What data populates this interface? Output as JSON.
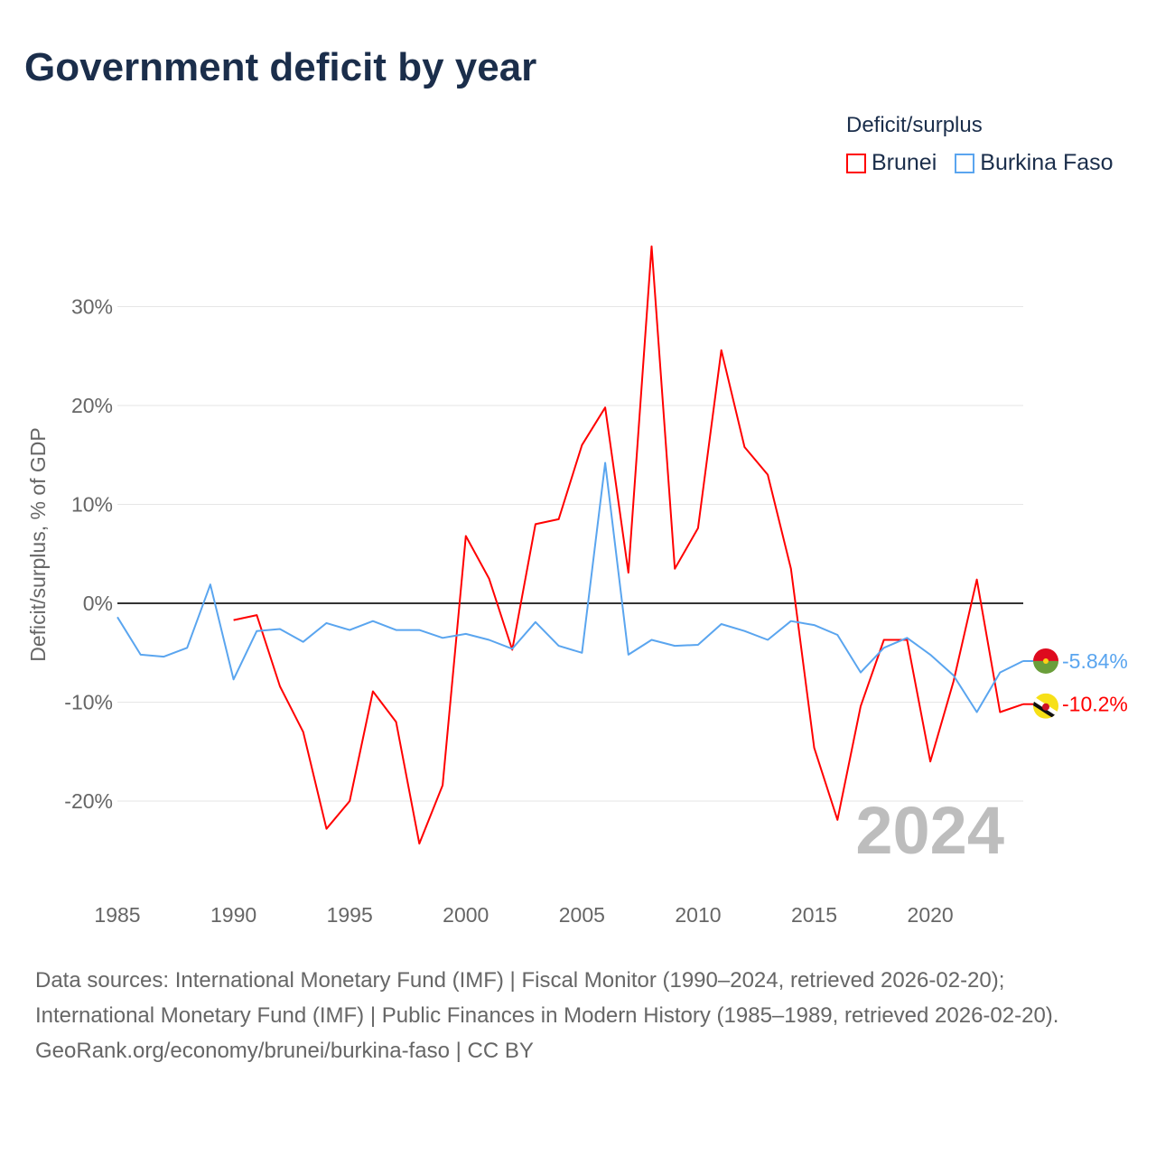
{
  "title": "Government deficit by year",
  "legend": {
    "title": "Deficit/surplus",
    "items": [
      {
        "name": "Brunei",
        "color": "#ff0000"
      },
      {
        "name": "Burkina Faso",
        "color": "#5aa5ef"
      }
    ]
  },
  "chart_data": {
    "type": "line",
    "title": "Government deficit by year",
    "ylabel": "Deficit/surplus, % of GDP",
    "xlabel": "",
    "xlim": [
      1985,
      2024
    ],
    "ylim": [
      -27,
      36
    ],
    "x_ticks": [
      1985,
      1990,
      1995,
      2000,
      2005,
      2010,
      2015,
      2020
    ],
    "y_ticks": [
      30,
      20,
      10,
      0,
      -10,
      -20
    ],
    "y_tick_labels": [
      "30%",
      "20%",
      "10%",
      "0%",
      "-10%",
      "-20%"
    ],
    "grid": true,
    "year_watermark": "2024",
    "series": [
      {
        "name": "Brunei",
        "color": "#ff0000",
        "end_label": "-10.2%",
        "x": [
          1990,
          1991,
          1992,
          1993,
          1994,
          1995,
          1996,
          1997,
          1998,
          1999,
          2000,
          2001,
          2002,
          2003,
          2004,
          2005,
          2006,
          2007,
          2008,
          2009,
          2010,
          2011,
          2012,
          2013,
          2014,
          2015,
          2016,
          2017,
          2018,
          2019,
          2020,
          2021,
          2022,
          2023,
          2024
        ],
        "values": [
          -1.7,
          -1.2,
          -8.4,
          -13.0,
          -22.8,
          -20.0,
          -8.9,
          -12.0,
          -24.3,
          -18.4,
          6.8,
          2.5,
          -4.7,
          8.0,
          8.5,
          16.0,
          19.8,
          3.1,
          36.1,
          3.5,
          7.6,
          25.6,
          15.8,
          13.0,
          3.5,
          -14.6,
          -21.9,
          -10.4,
          -3.7,
          -3.7,
          -16.0,
          -7.9,
          2.4,
          -11.0,
          -10.2
        ]
      },
      {
        "name": "Burkina Faso",
        "color": "#5aa5ef",
        "end_label": "-5.84%",
        "x": [
          1985,
          1986,
          1987,
          1988,
          1989,
          1990,
          1991,
          1992,
          1993,
          1994,
          1995,
          1996,
          1997,
          1998,
          1999,
          2000,
          2001,
          2002,
          2003,
          2004,
          2005,
          2006,
          2007,
          2008,
          2009,
          2010,
          2011,
          2012,
          2013,
          2014,
          2015,
          2016,
          2017,
          2018,
          2019,
          2020,
          2021,
          2022,
          2023,
          2024
        ],
        "values": [
          -1.4,
          -5.2,
          -5.4,
          -4.5,
          1.9,
          -7.7,
          -2.8,
          -2.6,
          -3.9,
          -2.0,
          -2.7,
          -1.8,
          -2.7,
          -2.7,
          -3.5,
          -3.1,
          -3.7,
          -4.6,
          -1.9,
          -4.3,
          -5.0,
          14.2,
          -5.2,
          -3.7,
          -4.3,
          -4.2,
          -2.1,
          -2.8,
          -3.7,
          -1.8,
          -2.2,
          -3.2,
          -7.0,
          -4.5,
          -3.5,
          -5.2,
          -7.3,
          -11.0,
          -7.0,
          -5.84
        ]
      }
    ]
  },
  "footer": {
    "sources": "Data sources: International Monetary Fund (IMF) | Fiscal Monitor (1990–2024, retrieved 2026-02-20); International Monetary Fund (IMF) | Public Finances in Modern History (1985–1989, retrieved 2026-02-20).",
    "credit": "GeoRank.org/economy/brunei/burkina-faso | CC BY"
  }
}
